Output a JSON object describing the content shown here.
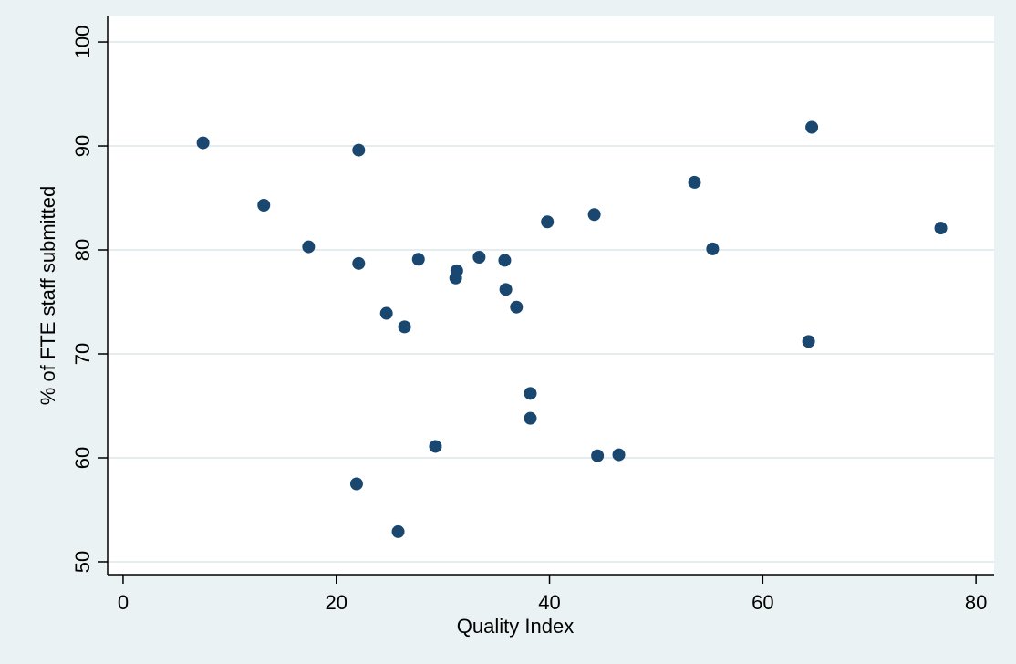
{
  "chart_data": {
    "type": "scatter",
    "x_label": "Quality Index",
    "y_label": "% of FTE staff submitted",
    "color": "#1a476f",
    "grid": true,
    "xlim": [
      -1.45,
      81.7
    ],
    "xticks": [
      0,
      20,
      40,
      60,
      80
    ],
    "ylim": [
      48.77,
      102.46
    ],
    "yticks": [
      50,
      60,
      70,
      80,
      90,
      100
    ],
    "x": [
      7.5,
      13.2,
      17.4,
      22.1,
      22.1,
      21.9,
      24.7,
      26.4,
      25.8,
      27.7,
      29.3,
      31.3,
      31.2,
      33.4,
      35.8,
      35.9,
      36.9,
      38.2,
      38.2,
      39.8,
      44.2,
      44.5,
      46.5,
      53.6,
      55.3,
      64.3,
      64.6,
      76.7
    ],
    "values": [
      90.3,
      84.3,
      80.3,
      89.6,
      78.7,
      57.5,
      73.9,
      72.6,
      52.9,
      79.1,
      61.1,
      78.0,
      77.3,
      79.3,
      79.0,
      76.2,
      74.5,
      66.2,
      63.8,
      82.7,
      83.4,
      60.2,
      60.3,
      86.5,
      80.1,
      71.2,
      91.8,
      82.1
    ]
  }
}
